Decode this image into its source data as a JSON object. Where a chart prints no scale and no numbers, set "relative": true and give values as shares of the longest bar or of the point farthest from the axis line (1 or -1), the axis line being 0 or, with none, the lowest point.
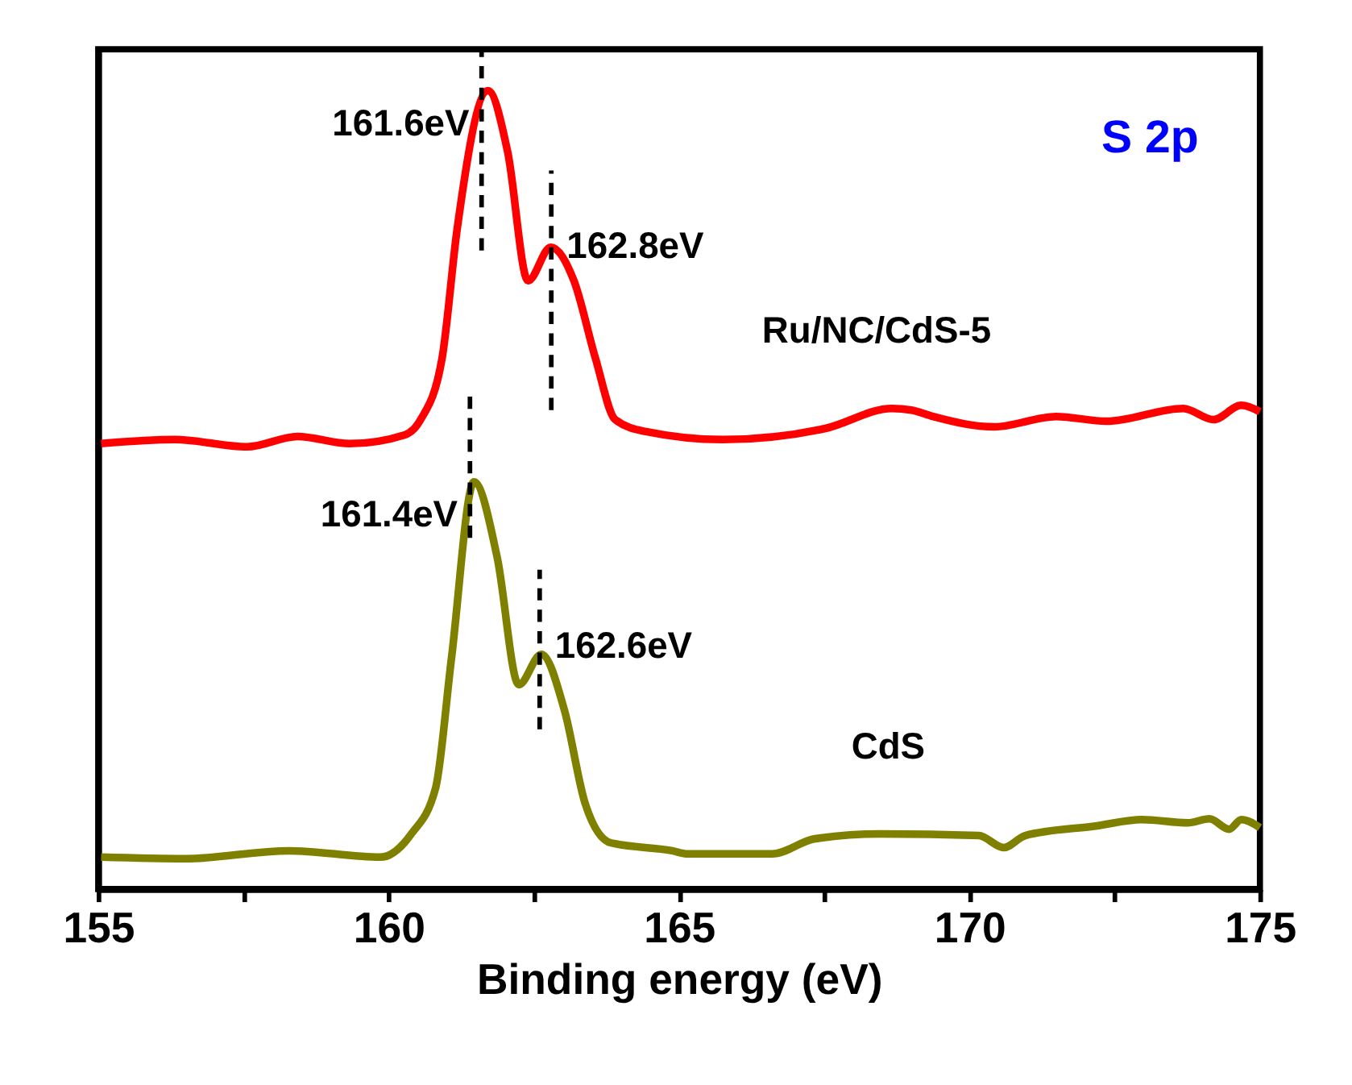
{
  "chart_data": {
    "type": "line",
    "relative": true,
    "xlabel": "Binding energy (eV)",
    "xlim": [
      155,
      175
    ],
    "xticks": [
      155,
      {
        "value": 157.5,
        "label": null
      },
      160,
      {
        "value": 162.5,
        "label": null
      },
      165,
      {
        "value": 167.5,
        "label": null
      },
      170,
      {
        "value": 172.5,
        "label": null
      },
      175
    ],
    "grid": false,
    "marker": "none",
    "line_style": "solid",
    "series": [
      {
        "name": "Ru/NC/CdS-5",
        "color": "#ff0000",
        "x": [
          155.05,
          156.32,
          157.56,
          158.43,
          159.33,
          160.28,
          160.55,
          160.92,
          161.18,
          161.71,
          162.05,
          162.4,
          162.79,
          163.19,
          163.56,
          163.9,
          164.43,
          165.75,
          167.52,
          168.66,
          169.0,
          169.37,
          170.43,
          171.49,
          172.36,
          173.68,
          174.2,
          174.68,
          175.0
        ],
        "values": [
          0.558,
          0.563,
          0.554,
          0.567,
          0.558,
          0.569,
          0.588,
          0.665,
          0.827,
          1.0,
          0.923,
          0.762,
          0.804,
          0.762,
          0.665,
          0.588,
          0.573,
          0.563,
          0.577,
          0.602,
          0.6,
          0.592,
          0.579,
          0.592,
          0.586,
          0.602,
          0.588,
          0.606,
          0.598
        ]
      },
      {
        "name": "CdS",
        "color": "#808000",
        "x": [
          155.05,
          156.5,
          158.28,
          159.86,
          160.39,
          160.81,
          161.08,
          161.47,
          161.87,
          162.24,
          162.63,
          163.03,
          163.38,
          163.82,
          164.88,
          165.15,
          166.6,
          167.34,
          168.47,
          170.16,
          170.59,
          170.96,
          172.17,
          172.97,
          173.76,
          174.13,
          174.47,
          174.68,
          175.0
        ],
        "values": [
          0.04,
          0.038,
          0.048,
          0.04,
          0.069,
          0.127,
          0.288,
          0.51,
          0.415,
          0.256,
          0.294,
          0.223,
          0.108,
          0.058,
          0.048,
          0.044,
          0.044,
          0.063,
          0.069,
          0.067,
          0.052,
          0.067,
          0.079,
          0.087,
          0.083,
          0.088,
          0.075,
          0.087,
          0.077
        ]
      }
    ],
    "ref_lines": [
      {
        "axis": "x",
        "value": 161.6,
        "color": "#000000",
        "line_style": "dashed"
      },
      {
        "axis": "x",
        "value": 162.8,
        "color": "#000000",
        "line_style": "dashed"
      },
      {
        "axis": "x",
        "value": 161.4,
        "color": "#000000",
        "line_style": "dashed"
      },
      {
        "axis": "x",
        "value": 162.6,
        "color": "#000000",
        "line_style": "dashed"
      }
    ],
    "annotations": [
      {
        "text": "161.6eV",
        "x": 161.6,
        "y": 1.0
      },
      {
        "text": "162.8eV",
        "x": 162.8,
        "y": 0.804
      },
      {
        "text": "161.4eV",
        "x": 161.4,
        "y": 0.51
      },
      {
        "text": "162.6eV",
        "x": 162.6,
        "y": 0.294
      },
      "S 2p"
    ]
  }
}
